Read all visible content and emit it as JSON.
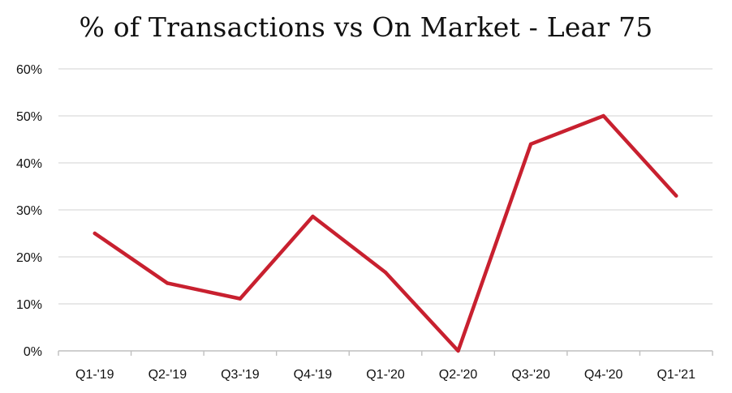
{
  "chart_data": {
    "type": "line",
    "title": "% of Transactions vs On Market - Lear 75",
    "categories": [
      "Q1-'19",
      "Q2-'19",
      "Q3-'19",
      "Q4-'19",
      "Q1-'20",
      "Q2-'20",
      "Q3-'20",
      "Q4-'20",
      "Q1-'21"
    ],
    "series": [
      {
        "values": [
          0.25,
          0.144,
          0.111,
          0.286,
          0.167,
          0.0,
          0.44,
          0.5,
          0.33
        ],
        "color": "#c8202f"
      }
    ],
    "xlabel": "",
    "ylabel": "",
    "ylim": [
      0,
      0.6
    ],
    "yticks": [
      0,
      0.1,
      0.2,
      0.3,
      0.4,
      0.5,
      0.6
    ],
    "ytick_labels": [
      "0%",
      "10%",
      "20%",
      "30%",
      "40%",
      "50%",
      "60%"
    ],
    "grid": true,
    "legend": "none",
    "gridline_color": "#d9d9d9",
    "axis_color": "#bfbfbf"
  }
}
